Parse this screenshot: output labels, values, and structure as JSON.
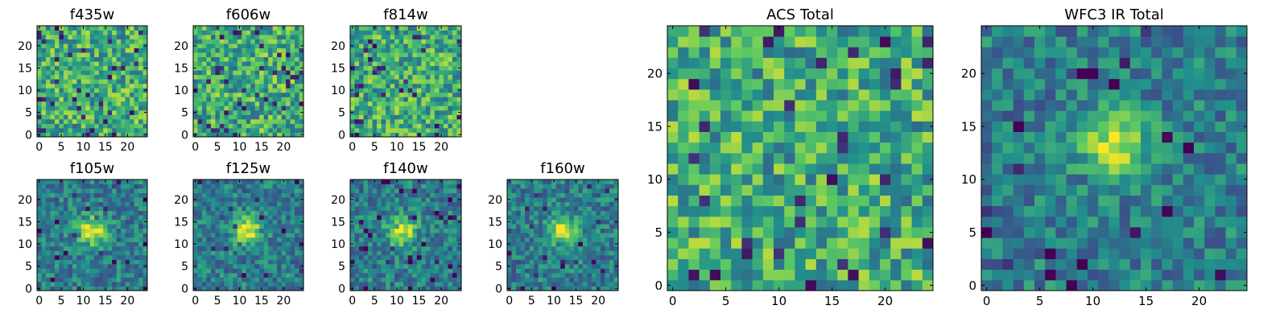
{
  "chart_data": [
    {
      "type": "heatmap",
      "title": "f435w",
      "grid_size": 25,
      "xlim": [
        -0.5,
        24.5
      ],
      "ylim": [
        -0.5,
        24.5
      ],
      "xticks": [
        0,
        5,
        10,
        15,
        20
      ],
      "yticks": [
        0,
        5,
        10,
        15,
        20
      ],
      "colormap": "viridis",
      "source_blob": false,
      "noise_seed": 11
    },
    {
      "type": "heatmap",
      "title": "f606w",
      "grid_size": 25,
      "xlim": [
        -0.5,
        24.5
      ],
      "ylim": [
        -0.5,
        24.5
      ],
      "xticks": [
        0,
        5,
        10,
        15,
        20
      ],
      "yticks": [
        0,
        5,
        10,
        15,
        20
      ],
      "colormap": "viridis",
      "source_blob": false,
      "noise_seed": 23
    },
    {
      "type": "heatmap",
      "title": "f814w",
      "grid_size": 25,
      "xlim": [
        -0.5,
        24.5
      ],
      "ylim": [
        -0.5,
        24.5
      ],
      "xticks": [
        0,
        5,
        10,
        15,
        20
      ],
      "yticks": [
        0,
        5,
        10,
        15,
        20
      ],
      "colormap": "viridis",
      "source_blob": false,
      "noise_seed": 37
    },
    {
      "type": "heatmap",
      "title": "f105w",
      "grid_size": 25,
      "xlim": [
        -0.5,
        24.5
      ],
      "ylim": [
        -0.5,
        24.5
      ],
      "xticks": [
        0,
        5,
        10,
        15,
        20
      ],
      "yticks": [
        0,
        5,
        10,
        15,
        20
      ],
      "colormap": "viridis",
      "source_blob": true,
      "blob_center": [
        12,
        13
      ],
      "noise_seed": 41
    },
    {
      "type": "heatmap",
      "title": "f125w",
      "grid_size": 25,
      "xlim": [
        -0.5,
        24.5
      ],
      "ylim": [
        -0.5,
        24.5
      ],
      "xticks": [
        0,
        5,
        10,
        15,
        20
      ],
      "yticks": [
        0,
        5,
        10,
        15,
        20
      ],
      "colormap": "viridis",
      "source_blob": true,
      "blob_center": [
        12,
        13
      ],
      "noise_seed": 53
    },
    {
      "type": "heatmap",
      "title": "f140w",
      "grid_size": 25,
      "xlim": [
        -0.5,
        24.5
      ],
      "ylim": [
        -0.5,
        24.5
      ],
      "xticks": [
        0,
        5,
        10,
        15,
        20
      ],
      "yticks": [
        0,
        5,
        10,
        15,
        20
      ],
      "colormap": "viridis",
      "source_blob": true,
      "blob_center": [
        11,
        13
      ],
      "noise_seed": 67
    },
    {
      "type": "heatmap",
      "title": "f160w",
      "grid_size": 25,
      "xlim": [
        -0.5,
        24.5
      ],
      "ylim": [
        -0.5,
        24.5
      ],
      "xticks": [
        0,
        5,
        10,
        15,
        20
      ],
      "yticks": [
        0,
        5,
        10,
        15,
        20
      ],
      "colormap": "viridis",
      "source_blob": true,
      "blob_center": [
        12,
        13
      ],
      "noise_seed": 79
    },
    {
      "type": "heatmap",
      "title": "ACS Total",
      "grid_size": 25,
      "xlim": [
        -0.5,
        24.5
      ],
      "ylim": [
        -0.5,
        24.5
      ],
      "xticks": [
        0,
        5,
        10,
        15,
        20
      ],
      "yticks": [
        0,
        5,
        10,
        15,
        20
      ],
      "colormap": "viridis",
      "source_blob": false,
      "noise_seed": 97
    },
    {
      "type": "heatmap",
      "title": "WFC3 IR Total",
      "grid_size": 25,
      "xlim": [
        -0.5,
        24.5
      ],
      "ylim": [
        -0.5,
        24.5
      ],
      "xticks": [
        0,
        5,
        10,
        15,
        20
      ],
      "yticks": [
        0,
        5,
        10,
        15,
        20
      ],
      "colormap": "viridis",
      "source_blob": true,
      "blob_center": [
        12,
        13
      ],
      "noise_seed": 113
    }
  ]
}
